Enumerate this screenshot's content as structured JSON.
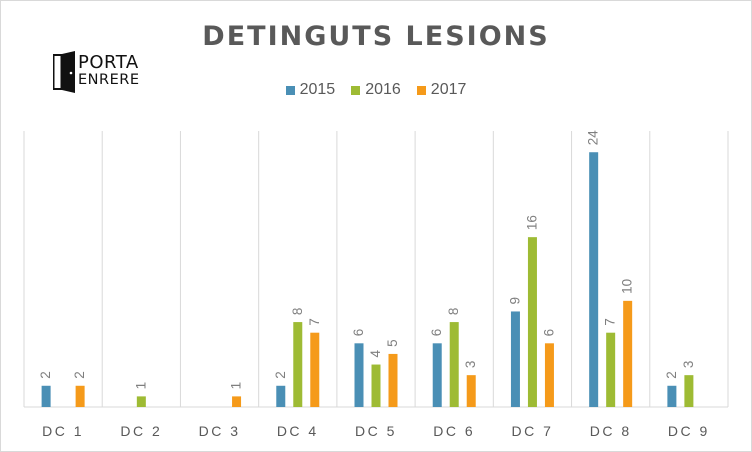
{
  "logo": {
    "line1": "PORTA",
    "line2": "ENRERE"
  },
  "chart_data": {
    "type": "bar",
    "title": "DETINGUTS  LESIONS",
    "xlabel": "",
    "ylabel": "",
    "categories": [
      "DC 1",
      "DC 2",
      "DC 3",
      "DC 4",
      "DC 5",
      "DC 6",
      "DC 7",
      "DC 8",
      "DC 9"
    ],
    "series": [
      {
        "name": "2015",
        "color": "#4a8fb5",
        "values": [
          2,
          null,
          null,
          2,
          6,
          6,
          9,
          24,
          2
        ]
      },
      {
        "name": "2016",
        "color": "#9ebb34",
        "values": [
          null,
          1,
          null,
          8,
          4,
          8,
          16,
          7,
          3
        ]
      },
      {
        "name": "2017",
        "color": "#f59a1a",
        "values": [
          2,
          null,
          1,
          7,
          5,
          3,
          6,
          10,
          null
        ]
      }
    ],
    "ylim": [
      0,
      26
    ],
    "legend_position": "top",
    "grid": "vertical separators",
    "data_labels": "rotated"
  }
}
